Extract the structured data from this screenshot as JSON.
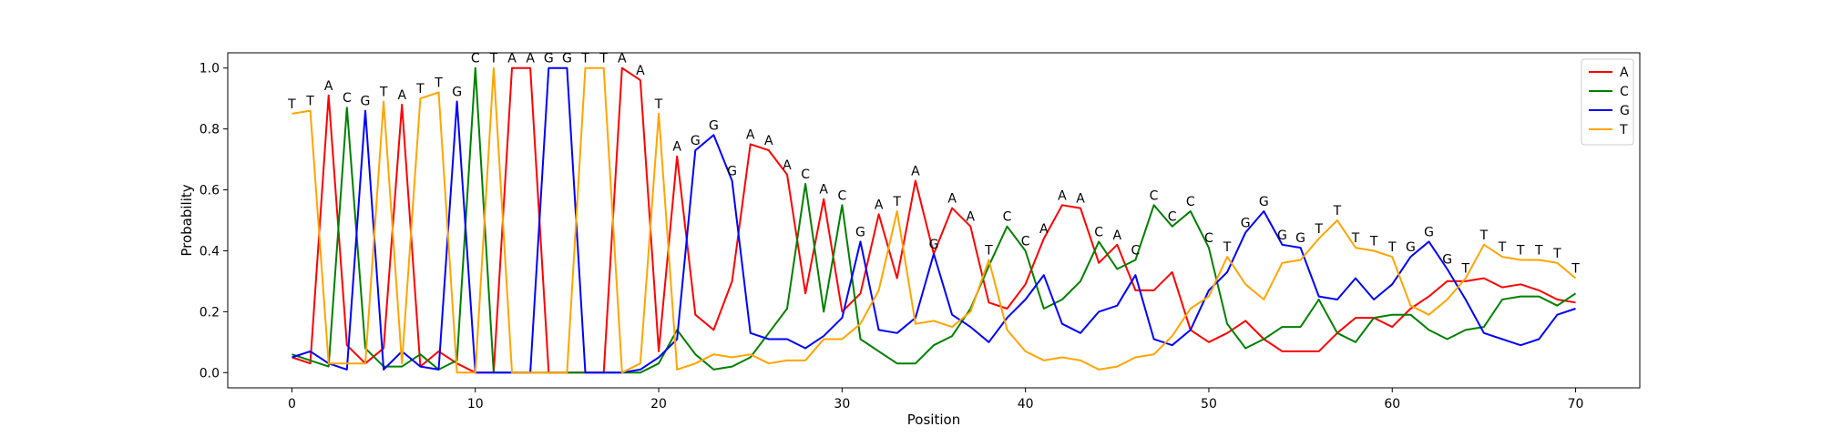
{
  "chart_data": {
    "type": "line",
    "xlabel": "Position",
    "ylabel": "Probability",
    "xlim": [
      -3.5,
      73.5
    ],
    "ylim": [
      -0.05,
      1.05
    ],
    "xticks": [
      "0",
      "10",
      "20",
      "30",
      "40",
      "50",
      "60",
      "70"
    ],
    "yticks": [
      "0.0",
      "0.2",
      "0.4",
      "0.6",
      "0.8",
      "1.0"
    ],
    "grid": false,
    "legend_position": "top-right",
    "x": [
      0,
      1,
      2,
      3,
      4,
      5,
      6,
      7,
      8,
      9,
      10,
      11,
      12,
      13,
      14,
      15,
      16,
      17,
      18,
      19,
      20,
      21,
      22,
      23,
      24,
      25,
      26,
      27,
      28,
      29,
      30,
      31,
      32,
      33,
      34,
      35,
      36,
      37,
      38,
      39,
      40,
      41,
      42,
      43,
      44,
      45,
      46,
      47,
      48,
      49,
      50,
      51,
      52,
      53,
      54,
      55,
      56,
      57,
      58,
      59,
      60,
      61,
      62,
      63,
      64,
      65,
      66,
      67,
      68,
      69,
      70
    ],
    "series": [
      {
        "name": "A",
        "color": "#ff0000",
        "values": [
          0.05,
          0.03,
          0.91,
          0.09,
          0.03,
          0.08,
          0.88,
          0.02,
          0.07,
          0.03,
          0.0,
          0.0,
          1.0,
          1.0,
          0.0,
          0.0,
          0.0,
          0.0,
          1.0,
          0.96,
          0.07,
          0.71,
          0.19,
          0.14,
          0.3,
          0.75,
          0.73,
          0.65,
          0.26,
          0.57,
          0.2,
          0.26,
          0.52,
          0.31,
          0.63,
          0.39,
          0.54,
          0.48,
          0.23,
          0.21,
          0.29,
          0.44,
          0.55,
          0.54,
          0.36,
          0.42,
          0.27,
          0.27,
          0.33,
          0.14,
          0.1,
          0.13,
          0.17,
          0.11,
          0.07,
          0.07,
          0.07,
          0.13,
          0.18,
          0.18,
          0.15,
          0.21,
          0.25,
          0.3,
          0.3,
          0.31,
          0.28,
          0.29,
          0.27,
          0.24,
          0.23
        ]
      },
      {
        "name": "C",
        "color": "#008000",
        "values": [
          0.06,
          0.04,
          0.02,
          0.87,
          0.08,
          0.02,
          0.02,
          0.06,
          0.01,
          0.04,
          1.0,
          0.0,
          0.0,
          0.0,
          0.0,
          0.0,
          0.0,
          0.0,
          0.0,
          0.0,
          0.03,
          0.14,
          0.06,
          0.01,
          0.02,
          0.05,
          0.13,
          0.21,
          0.62,
          0.2,
          0.55,
          0.11,
          0.07,
          0.03,
          0.03,
          0.09,
          0.12,
          0.21,
          0.35,
          0.48,
          0.4,
          0.21,
          0.24,
          0.3,
          0.43,
          0.34,
          0.37,
          0.55,
          0.48,
          0.53,
          0.41,
          0.16,
          0.08,
          0.11,
          0.15,
          0.15,
          0.24,
          0.13,
          0.1,
          0.18,
          0.19,
          0.19,
          0.14,
          0.11,
          0.14,
          0.15,
          0.24,
          0.25,
          0.25,
          0.22,
          0.26
        ]
      },
      {
        "name": "G",
        "color": "#0000ff",
        "values": [
          0.05,
          0.07,
          0.03,
          0.01,
          0.86,
          0.01,
          0.07,
          0.02,
          0.01,
          0.89,
          0.0,
          0.0,
          0.0,
          0.0,
          1.0,
          1.0,
          0.0,
          0.0,
          0.0,
          0.01,
          0.05,
          0.11,
          0.73,
          0.78,
          0.63,
          0.13,
          0.11,
          0.11,
          0.08,
          0.12,
          0.18,
          0.43,
          0.14,
          0.13,
          0.18,
          0.39,
          0.19,
          0.15,
          0.1,
          0.18,
          0.24,
          0.32,
          0.16,
          0.13,
          0.2,
          0.22,
          0.32,
          0.11,
          0.09,
          0.14,
          0.27,
          0.33,
          0.46,
          0.53,
          0.42,
          0.41,
          0.25,
          0.24,
          0.31,
          0.24,
          0.29,
          0.38,
          0.43,
          0.34,
          0.24,
          0.13,
          0.11,
          0.09,
          0.11,
          0.19,
          0.21
        ]
      },
      {
        "name": "T",
        "color": "#ffa500",
        "values": [
          0.85,
          0.86,
          0.03,
          0.03,
          0.03,
          0.89,
          0.03,
          0.9,
          0.92,
          0.0,
          0.0,
          1.0,
          0.0,
          0.0,
          0.0,
          0.0,
          1.0,
          1.0,
          0.0,
          0.03,
          0.85,
          0.01,
          0.03,
          0.06,
          0.05,
          0.06,
          0.03,
          0.04,
          0.04,
          0.11,
          0.11,
          0.16,
          0.27,
          0.53,
          0.16,
          0.17,
          0.15,
          0.2,
          0.37,
          0.14,
          0.07,
          0.04,
          0.05,
          0.04,
          0.01,
          0.02,
          0.05,
          0.06,
          0.12,
          0.21,
          0.25,
          0.38,
          0.29,
          0.24,
          0.36,
          0.37,
          0.44,
          0.5,
          0.41,
          0.4,
          0.38,
          0.22,
          0.19,
          0.24,
          0.31,
          0.42,
          0.38,
          0.37,
          0.37,
          0.36,
          0.31
        ]
      }
    ],
    "annotations": {
      "x": [
        0,
        1,
        2,
        3,
        4,
        5,
        6,
        7,
        8,
        9,
        10,
        11,
        12,
        13,
        14,
        15,
        16,
        17,
        18,
        19,
        20,
        21,
        22,
        23,
        24,
        25,
        26,
        27,
        28,
        29,
        30,
        31,
        32,
        33,
        34,
        35,
        36,
        37,
        38,
        39,
        40,
        41,
        42,
        43,
        44,
        45,
        46,
        47,
        48,
        49,
        50,
        51,
        52,
        53,
        54,
        55,
        56,
        57,
        58,
        59,
        60,
        61,
        62,
        63,
        64,
        65,
        66,
        67,
        68,
        69,
        70
      ],
      "labels": [
        "T",
        "T",
        "A",
        "C",
        "G",
        "T",
        "A",
        "T",
        "T",
        "G",
        "C",
        "T",
        "A",
        "A",
        "G",
        "G",
        "T",
        "T",
        "A",
        "A",
        "T",
        "A",
        "G",
        "G",
        "G",
        "A",
        "A",
        "A",
        "C",
        "A",
        "C",
        "G",
        "A",
        "T",
        "A",
        "G",
        "A",
        "A",
        "T",
        "C",
        "C",
        "A",
        "A",
        "A",
        "C",
        "A",
        "C",
        "C",
        "C",
        "C",
        "C",
        "T",
        "G",
        "G",
        "G",
        "G",
        "T",
        "T",
        "T",
        "T",
        "T",
        "G",
        "G",
        "G",
        "T",
        "T",
        "T",
        "T",
        "T",
        "T",
        "T"
      ],
      "y": [
        0.85,
        0.86,
        0.91,
        0.87,
        0.86,
        0.89,
        0.88,
        0.9,
        0.92,
        0.89,
        1.0,
        1.0,
        1.0,
        1.0,
        1.0,
        1.0,
        1.0,
        1.0,
        1.0,
        0.96,
        0.85,
        0.71,
        0.73,
        0.78,
        0.63,
        0.75,
        0.73,
        0.65,
        0.62,
        0.57,
        0.55,
        0.43,
        0.52,
        0.53,
        0.63,
        0.39,
        0.54,
        0.48,
        0.37,
        0.48,
        0.4,
        0.44,
        0.55,
        0.54,
        0.43,
        0.42,
        0.37,
        0.55,
        0.48,
        0.53,
        0.41,
        0.38,
        0.46,
        0.53,
        0.42,
        0.41,
        0.44,
        0.5,
        0.41,
        0.4,
        0.38,
        0.38,
        0.43,
        0.34,
        0.31,
        0.42,
        0.38,
        0.37,
        0.37,
        0.36,
        0.31
      ]
    }
  }
}
